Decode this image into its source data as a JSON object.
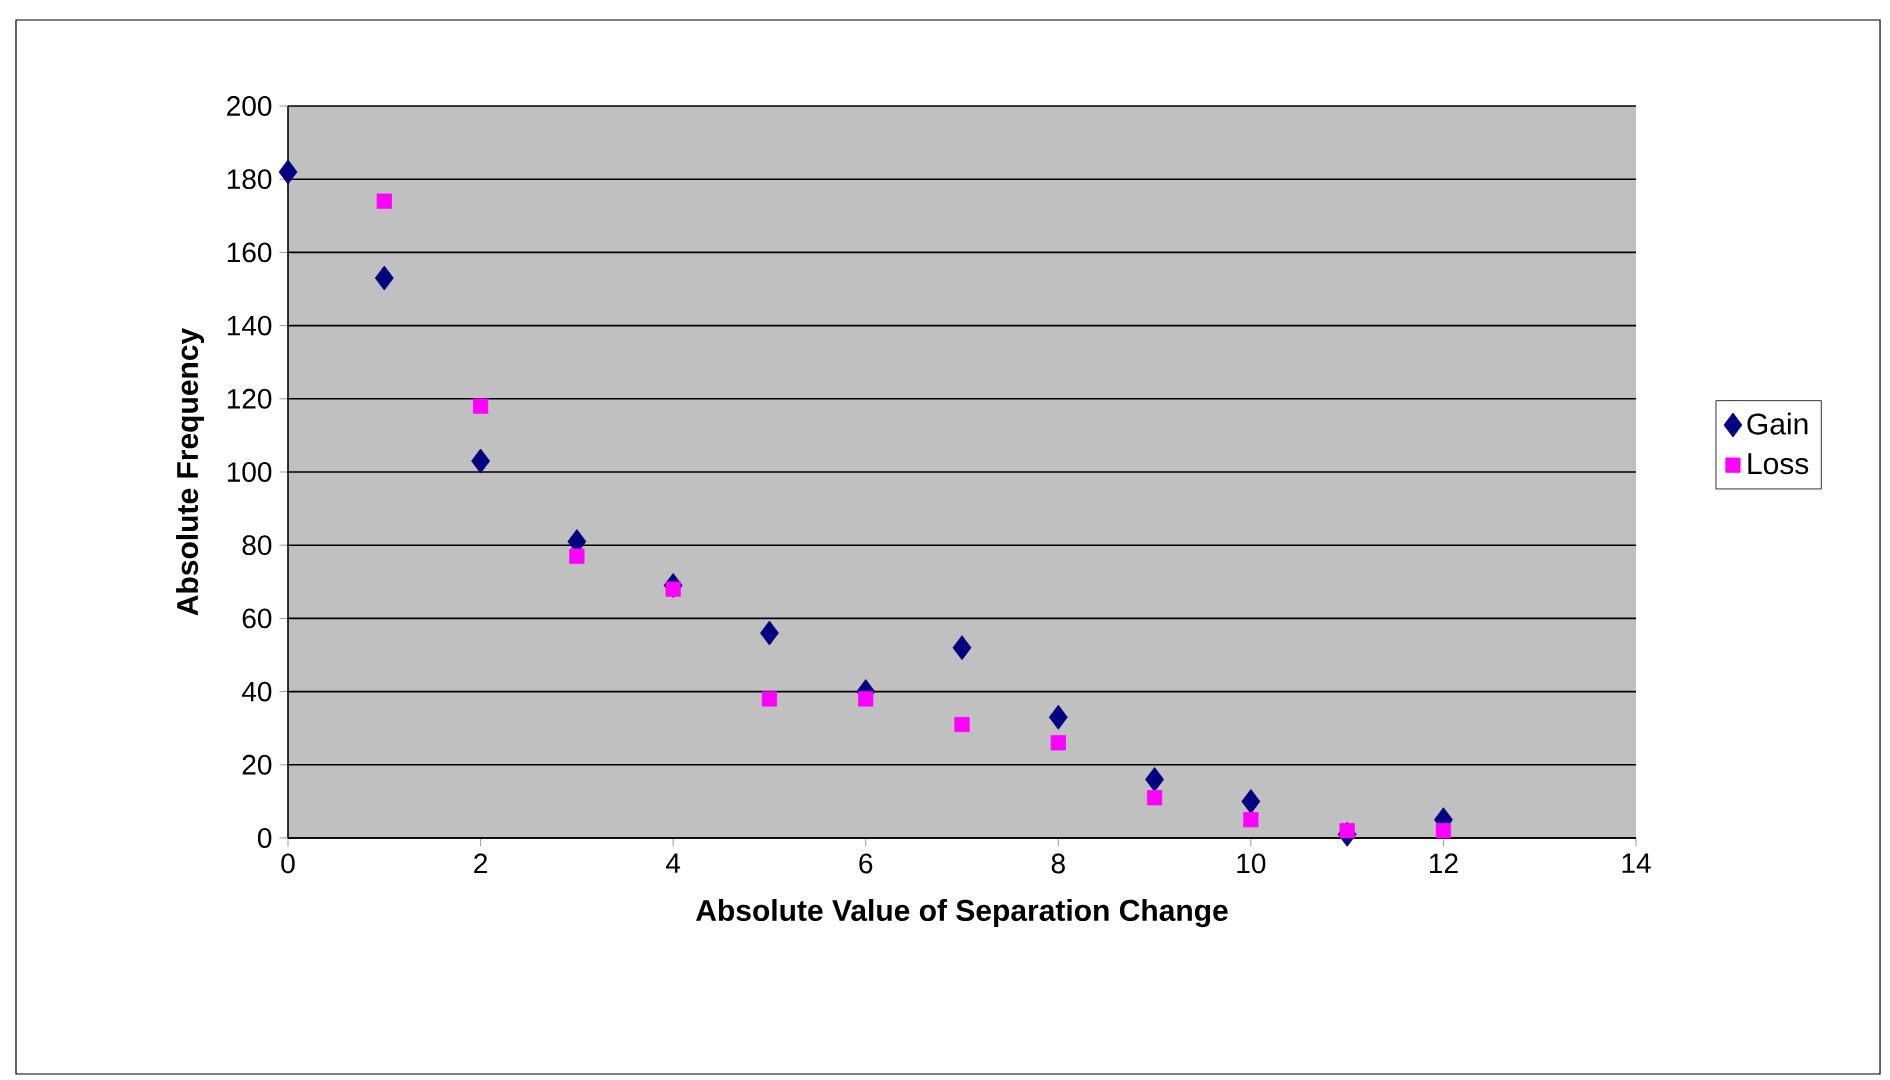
{
  "chart_data": {
    "type": "scatter",
    "xlabel": "Absolute Value of Separation Change",
    "ylabel": "Absolute Frequency",
    "xlim": [
      0,
      14
    ],
    "xticks": [
      0,
      2,
      4,
      6,
      8,
      10,
      12,
      14
    ],
    "ylim": [
      0,
      200
    ],
    "yticks": [
      0,
      20,
      40,
      60,
      80,
      100,
      120,
      140,
      160,
      180,
      200
    ],
    "grid": "y",
    "legend": "right",
    "series": [
      {
        "name": "Gain",
        "color": "#000080",
        "marker": "diamond",
        "x": [
          0,
          1,
          2,
          3,
          4,
          5,
          6,
          7,
          8,
          9,
          10,
          11,
          12
        ],
        "values": [
          182,
          153,
          103,
          81,
          69,
          56,
          40,
          52,
          33,
          16,
          10,
          1,
          5
        ]
      },
      {
        "name": "Loss",
        "color": "#ff00ff",
        "marker": "square",
        "x": [
          1,
          2,
          3,
          4,
          5,
          6,
          7,
          8,
          9,
          10,
          11,
          12
        ],
        "values": [
          174,
          118,
          77,
          68,
          38,
          38,
          31,
          26,
          11,
          5,
          2,
          2
        ]
      }
    ]
  }
}
